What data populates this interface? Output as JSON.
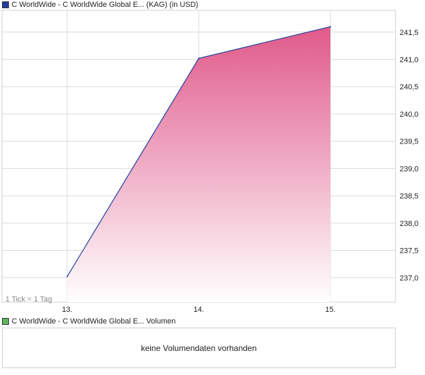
{
  "chart_data": {
    "type": "area",
    "title": "C WorldWide - C WorldWide Global E... (KAG) (in USD)",
    "categories": [
      "13.",
      "14.",
      "15."
    ],
    "values": [
      237.02,
      241.02,
      241.6
    ],
    "ylim": [
      236.55,
      241.9
    ],
    "yticks": [
      237.0,
      237.5,
      238.0,
      238.5,
      239.0,
      239.5,
      240.0,
      240.5,
      241.0,
      241.5
    ],
    "ytick_labels": [
      "237,0",
      "237,5",
      "238,0",
      "238,5",
      "239,0",
      "239,5",
      "240,0",
      "240,5",
      "241,0",
      "241,5"
    ],
    "grid": true,
    "tick_note": "1 Tick = 1 Tag",
    "series_color": "#1f3f9f",
    "fill_color_top": "#e05a8a",
    "fill_color_bottom": "#ffffff",
    "legend_color": "#1f3f9f"
  },
  "volume": {
    "label": "C WorldWide - C WorldWide Global E... Volumen",
    "legend_color": "#5cb85c",
    "empty_message": "keine Volumendaten vorhanden"
  }
}
